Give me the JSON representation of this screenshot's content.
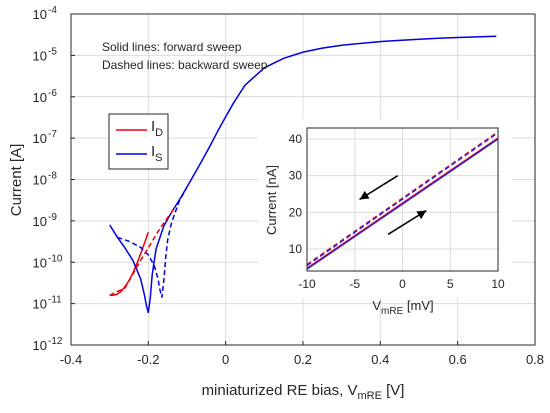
{
  "chart_data": [
    {
      "type": "line",
      "xlabel": "miniaturized RE bias, V",
      "xlabel_sub": "mRE",
      "xlabel_unit": " [V]",
      "ylabel": "Current [A]",
      "xlim": [
        -0.4,
        0.8
      ],
      "ylim": [
        1e-12,
        0.0001
      ],
      "yscale": "log",
      "grid": true,
      "x_ticks": [
        "-0.4",
        "-0.2",
        "0",
        "0.2",
        "0.4",
        "0.6",
        "0.8"
      ],
      "y_ticks": [
        {
          "base": "10",
          "exp": "-12"
        },
        {
          "base": "10",
          "exp": "-11"
        },
        {
          "base": "10",
          "exp": "-10"
        },
        {
          "base": "10",
          "exp": "-9"
        },
        {
          "base": "10",
          "exp": "-8"
        },
        {
          "base": "10",
          "exp": "-7"
        },
        {
          "base": "10",
          "exp": "-6"
        },
        {
          "base": "10",
          "exp": "-5"
        },
        {
          "base": "10",
          "exp": "-4"
        }
      ],
      "annotations": [
        "Solid lines: forward sweep",
        "Dashed lines: backward sweep"
      ],
      "legend": {
        "placement": "left",
        "items": [
          {
            "label": "I",
            "sub": "D",
            "color": "#e8000b"
          },
          {
            "label": "I",
            "sub": "S",
            "color": "#0000e0"
          }
        ]
      },
      "series": [
        {
          "name": "ID",
          "style": "solid",
          "color": "#e8000b",
          "x": [
            -0.3,
            -0.29,
            -0.28,
            -0.27,
            -0.26,
            -0.25,
            -0.24,
            -0.23,
            -0.22,
            -0.21,
            -0.2
          ],
          "y": [
            1.6e-11,
            1.6e-11,
            1.7e-11,
            2e-11,
            2.6e-11,
            3.6e-11,
            5.5e-11,
            9e-11,
            1.6e-10,
            2.9e-10,
            5.3e-10
          ]
        },
        {
          "name": "IS",
          "style": "solid",
          "color": "#0000e0",
          "x": [
            -0.3,
            -0.28,
            -0.26,
            -0.24,
            -0.22,
            -0.21,
            -0.205,
            -0.2,
            -0.195,
            -0.19,
            -0.18,
            -0.16,
            -0.14,
            -0.12,
            -0.1,
            -0.08,
            -0.06,
            -0.04,
            -0.02,
            0.0,
            0.02,
            0.05,
            0.1,
            0.15,
            0.2,
            0.25,
            0.3,
            0.35,
            0.4,
            0.45,
            0.5,
            0.55,
            0.6,
            0.65,
            0.7
          ],
          "y": [
            8e-10,
            4e-10,
            2.2e-10,
            1.1e-10,
            4e-11,
            1.6e-11,
            9e-12,
            6e-12,
            1.4e-11,
            5e-11,
            2.1e-10,
            7.5e-10,
            1.6e-09,
            3.2e-09,
            6.6e-09,
            1.4e-08,
            3e-08,
            6.6e-08,
            1.5e-07,
            3.3e-07,
            7e-07,
            1.9e-06,
            5e-06,
            8.5e-06,
            1.2e-05,
            1.5e-05,
            1.75e-05,
            1.95e-05,
            2.15e-05,
            2.3e-05,
            2.45e-05,
            2.6e-05,
            2.7e-05,
            2.8e-05,
            2.9e-05
          ]
        },
        {
          "name": "IS backward",
          "style": "dashed",
          "color": "#0000e0",
          "x": [
            -0.28,
            -0.25,
            -0.22,
            -0.2,
            -0.185,
            -0.175,
            -0.17,
            -0.165,
            -0.16,
            -0.155,
            -0.15,
            -0.14,
            -0.12,
            -0.1
          ],
          "y": [
            4e-10,
            3.2e-10,
            2.3e-10,
            1.5e-10,
            8.5e-11,
            4e-11,
            2.2e-11,
            1.4e-11,
            3.5e-11,
            1.3e-10,
            3.5e-10,
            9e-10,
            3e-09,
            6.6e-09
          ]
        },
        {
          "name": "ID backward",
          "style": "dashed",
          "color": "#e8000b",
          "x": [
            -0.3,
            -0.26,
            -0.22,
            -0.19,
            -0.17,
            -0.15,
            -0.13
          ],
          "y": [
            1.6e-11,
            2.4e-11,
            1.1e-10,
            3.2e-10,
            6.5e-10,
            1.2e-09,
            2.2e-09
          ]
        }
      ]
    },
    {
      "type": "line",
      "xlabel": "V",
      "xlabel_sub": "mRE",
      "xlabel_unit": " [mV]",
      "ylabel": "Current [nA]",
      "xlim": [
        -10,
        10
      ],
      "ylim": [
        4,
        43
      ],
      "grid": true,
      "x_ticks": [
        "-10",
        "-5",
        "0",
        "5",
        "10"
      ],
      "y_ticks": [
        "10",
        "20",
        "30",
        "40"
      ],
      "arrows": [
        {
          "direction": "backward",
          "from": [
            -0.5,
            30
          ],
          "to": [
            -4.5,
            23.5
          ]
        },
        {
          "direction": "forward",
          "from": [
            -1.5,
            14
          ],
          "to": [
            2.5,
            20.5
          ]
        }
      ],
      "series": [
        {
          "name": "ID",
          "style": "solid",
          "color": "#e8000b",
          "x": [
            -10,
            10
          ],
          "y": [
            4.8,
            40.3
          ]
        },
        {
          "name": "IS",
          "style": "solid",
          "color": "#0000e0",
          "x": [
            -10,
            10
          ],
          "y": [
            4.5,
            40.0
          ]
        },
        {
          "name": "ID backward",
          "style": "dashed",
          "color": "#e8000b",
          "x": [
            -10,
            10
          ],
          "y": [
            5.8,
            42.0
          ]
        },
        {
          "name": "IS backward",
          "style": "dashed",
          "color": "#0000e0",
          "x": [
            -10,
            10
          ],
          "y": [
            5.5,
            41.7
          ]
        }
      ]
    }
  ]
}
